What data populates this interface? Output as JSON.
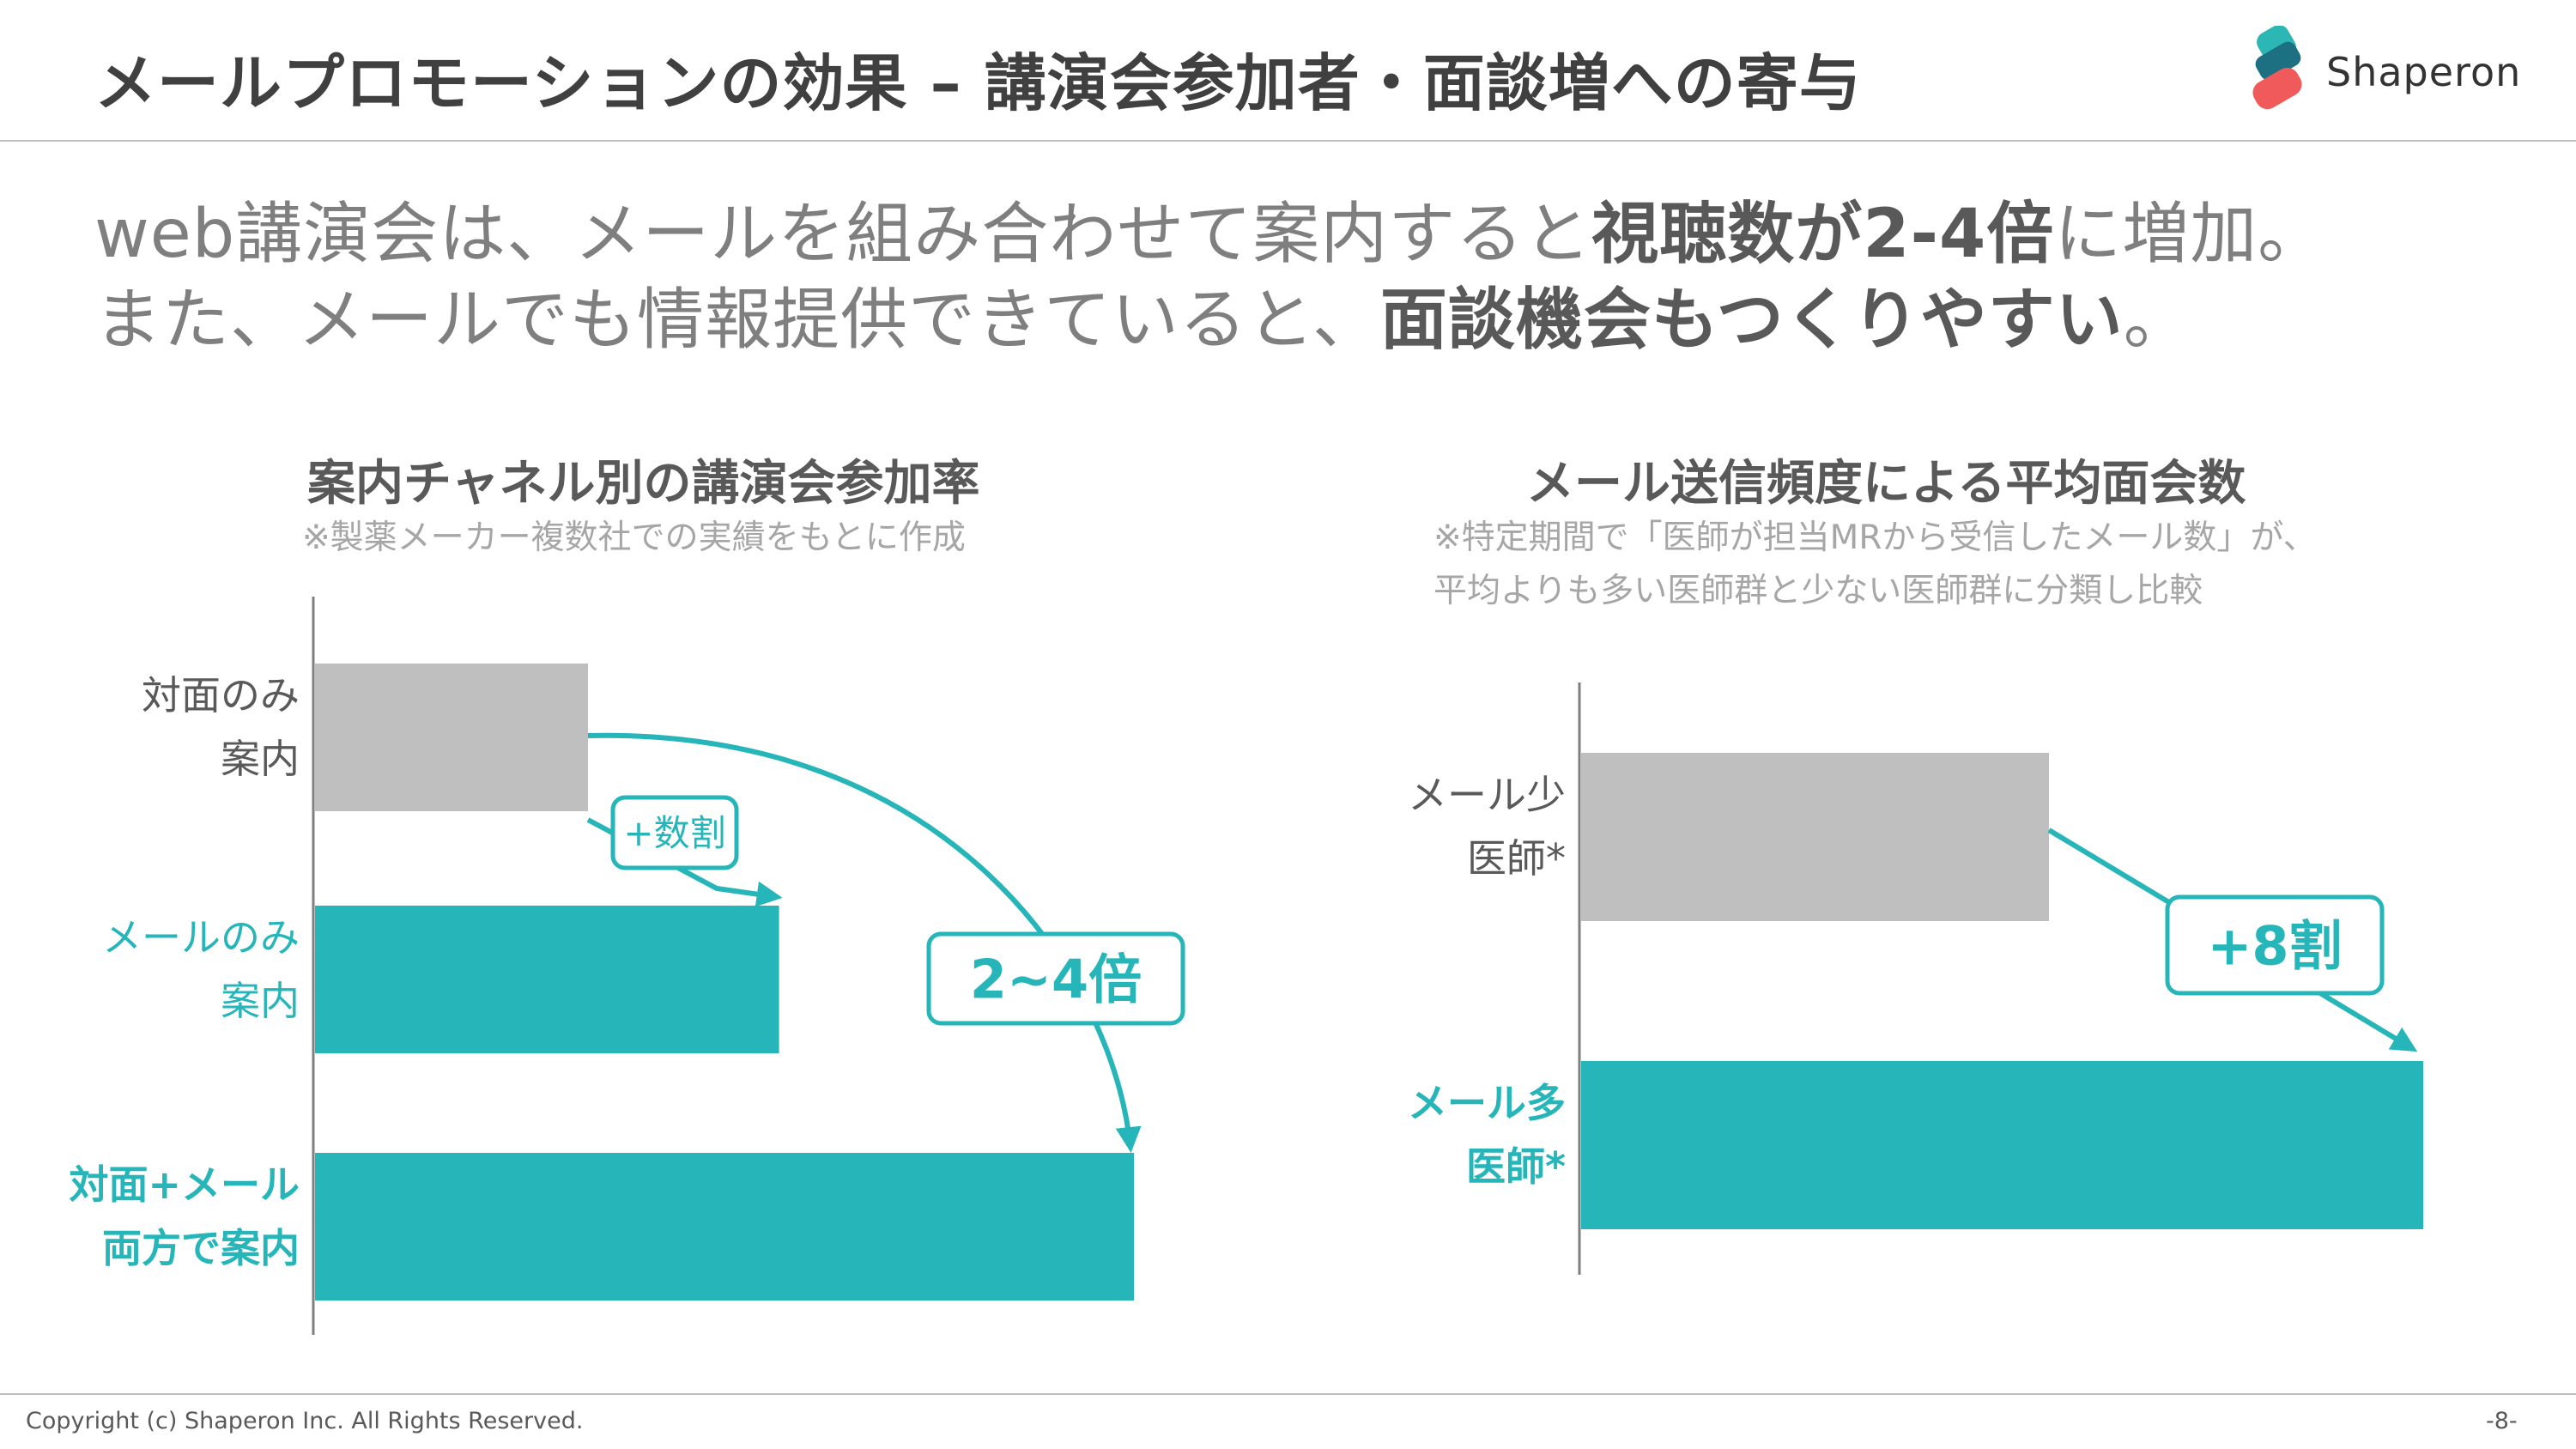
{
  "title": "メールプロモーションの効果 – 講演会参加者・面談増への寄与",
  "logo": {
    "text": "Shaperon"
  },
  "lead": {
    "line1": {
      "pre": "web講演会は、メールを組み合わせて案内すると",
      "bold": "視聴数が2-4倍",
      "post": "に増加。"
    },
    "line2": {
      "pre": "また、メールでも情報提供できていると、",
      "bold": "面談機会もつくりやすい",
      "post": "。"
    }
  },
  "colors": {
    "teal": "#26b5b8",
    "gray": "#bfbfbf",
    "axis": "#7f7f7f",
    "text": "#595959"
  },
  "chart_data": [
    {
      "type": "bar",
      "orientation": "horizontal",
      "title": "案内チャネル別の講演会参加率",
      "note": "※製薬メーカー複数社での実績をもとに作成",
      "categories": [
        [
          "対面のみ",
          "案内"
        ],
        [
          "メールのみ",
          "案内"
        ],
        [
          "対面+メール",
          "両方で案内"
        ]
      ],
      "values": [
        1.0,
        1.7,
        3.0
      ],
      "bar_colors": [
        "gray",
        "teal",
        "teal"
      ],
      "label_styles": [
        "normal",
        "teal",
        "teal-bold"
      ],
      "value_scale": "relative (対面のみ案内 = 1)",
      "annotations": [
        {
          "text": "+数割",
          "from": 0,
          "to": 1
        },
        {
          "text": "2~4倍",
          "from": 0,
          "to": 2
        }
      ]
    },
    {
      "type": "bar",
      "orientation": "horizontal",
      "title": "メール送信頻度による平均面会数",
      "note": [
        "※特定期間で「医師が担当MRから受信したメール数」が、",
        "平均よりも多い医師群と少ない医師群に分類し比較"
      ],
      "categories": [
        [
          "メール少",
          "医師*"
        ],
        [
          "メール多",
          "医師*"
        ]
      ],
      "values": [
        1.0,
        1.8
      ],
      "bar_colors": [
        "gray",
        "teal"
      ],
      "label_styles": [
        "normal",
        "teal-bold"
      ],
      "value_scale": "relative (メール少医師 = 1)",
      "annotations": [
        {
          "text": "+8割",
          "from": 0,
          "to": 1
        }
      ]
    }
  ],
  "footer": {
    "copyright": "Copyright (c) Shaperon Inc.  All Rights Reserved.",
    "page": "-8-"
  }
}
